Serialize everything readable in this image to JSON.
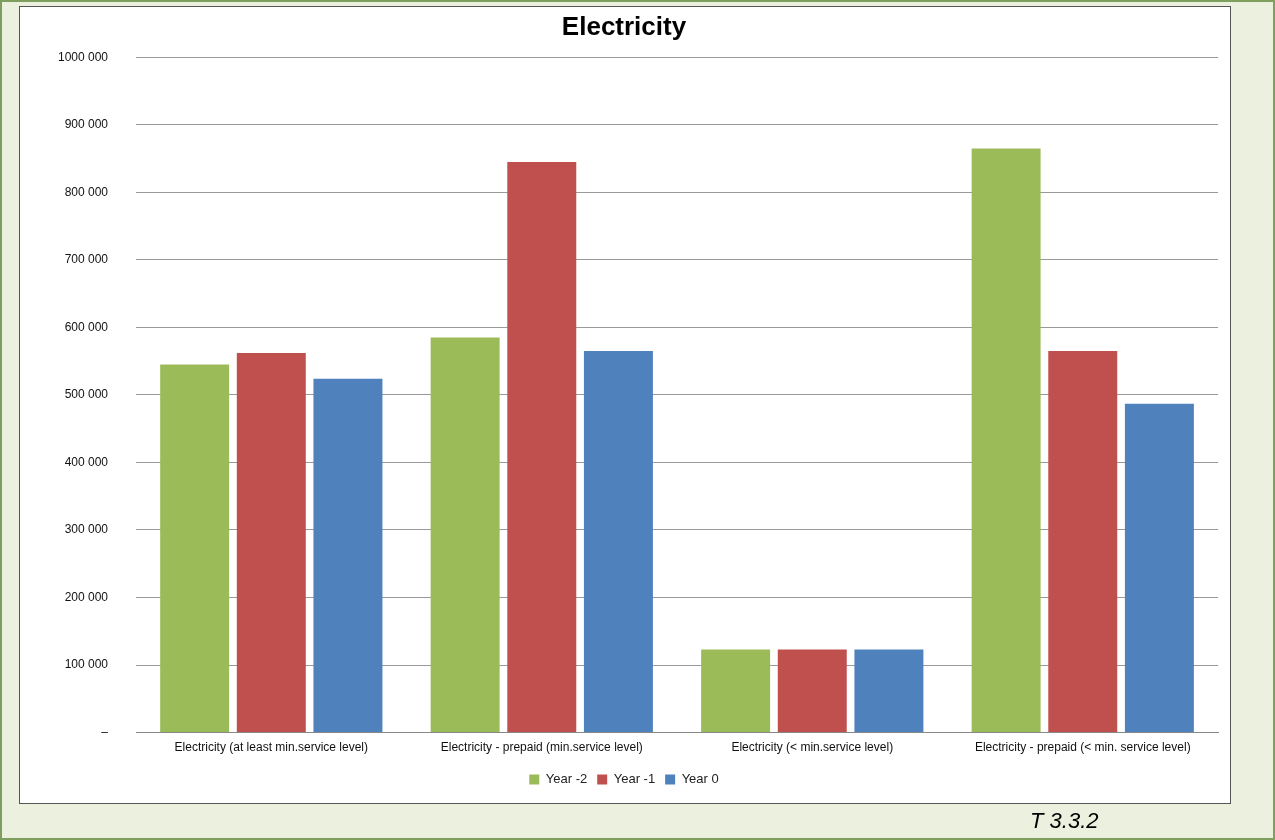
{
  "chart_data": {
    "type": "bar",
    "title": "Electricity",
    "categories": [
      "Electricity (at least min.service level)",
      "Electricity - prepaid (min.service level)",
      "Electricity (< min.service level)",
      "Electricity - prepaid (< min. service level)"
    ],
    "series": [
      {
        "name": "Year -2",
        "color": "#9bbb59",
        "values": [
          545000,
          585000,
          123000,
          865000
        ]
      },
      {
        "name": "Year -1",
        "color": "#c0504d",
        "values": [
          562000,
          845000,
          123000,
          565000
        ]
      },
      {
        "name": "Year 0",
        "color": "#4f81bd",
        "values": [
          524000,
          565000,
          123000,
          487000
        ]
      }
    ],
    "ylim": [
      0,
      1000000
    ],
    "yticks": [
      {
        "value": 0,
        "label": "–"
      },
      {
        "value": 100000,
        "label": "100 000"
      },
      {
        "value": 200000,
        "label": "200 000"
      },
      {
        "value": 300000,
        "label": "300 000"
      },
      {
        "value": 400000,
        "label": "400 000"
      },
      {
        "value": 500000,
        "label": "500 000"
      },
      {
        "value": 600000,
        "label": "600 000"
      },
      {
        "value": 700000,
        "label": "700 000"
      },
      {
        "value": 800000,
        "label": "800 000"
      },
      {
        "value": 900000,
        "label": "900 000"
      },
      {
        "value": 1000000,
        "label": "1000 000"
      }
    ],
    "grid": "y",
    "legend": "bottom",
    "annotations": [
      "T 3.3.2"
    ]
  }
}
